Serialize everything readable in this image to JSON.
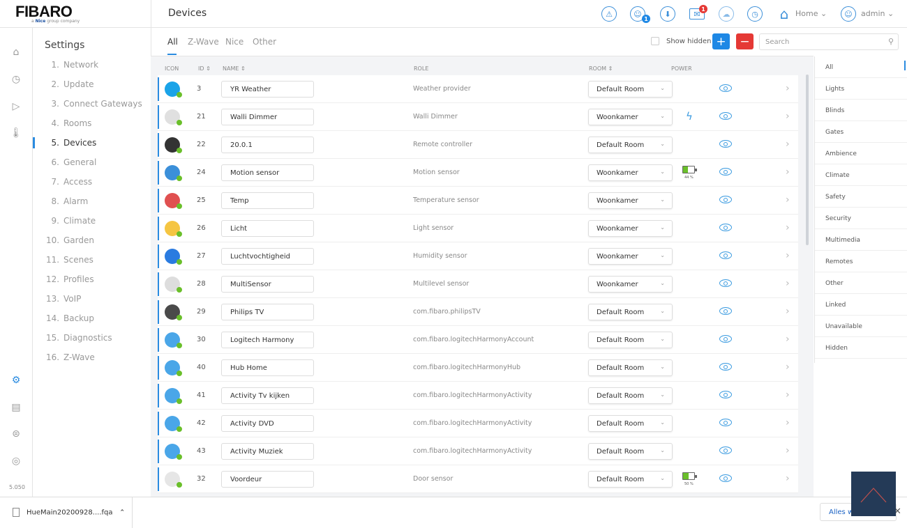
{
  "header": {
    "logo": "FIBARO",
    "logo_sub_brand": "Nice",
    "logo_sub_text": "group company",
    "title": "Devices",
    "icons": [
      "alarm-icon",
      "users-icon",
      "download-icon",
      "messages-icon",
      "cloud-icon",
      "clock-icon",
      "home-icon",
      "user-icon"
    ],
    "users_badge": "1",
    "messages_badge": "1",
    "home_label": "Home",
    "user_label": "admin"
  },
  "rail": {
    "version": "5.050"
  },
  "sidebar": {
    "title": "Settings",
    "items": [
      {
        "num": "1.",
        "label": "Network"
      },
      {
        "num": "2.",
        "label": "Update"
      },
      {
        "num": "3.",
        "label": "Connect Gateways"
      },
      {
        "num": "4.",
        "label": "Rooms"
      },
      {
        "num": "5.",
        "label": "Devices"
      },
      {
        "num": "6.",
        "label": "General"
      },
      {
        "num": "7.",
        "label": "Access"
      },
      {
        "num": "8.",
        "label": "Alarm"
      },
      {
        "num": "9.",
        "label": "Climate"
      },
      {
        "num": "10.",
        "label": "Garden"
      },
      {
        "num": "11.",
        "label": "Scenes"
      },
      {
        "num": "12.",
        "label": "Profiles"
      },
      {
        "num": "13.",
        "label": "VoIP"
      },
      {
        "num": "14.",
        "label": "Backup"
      },
      {
        "num": "15.",
        "label": "Diagnostics"
      },
      {
        "num": "16.",
        "label": "Z-Wave"
      }
    ],
    "active": 4
  },
  "tabs": [
    "All",
    "Z-Wave",
    "Nice",
    "Other"
  ],
  "toolbar": {
    "show_hidden": "Show hidden",
    "add": "+",
    "remove": "−",
    "search_placeholder": "Search"
  },
  "table": {
    "headers": {
      "icon": "ICON",
      "id": "ID ⇕",
      "name": "NAME ⇕",
      "role": "ROLE",
      "room": "ROOM ⇕",
      "power": "POWER"
    },
    "rows": [
      {
        "id": "3",
        "name": "YR Weather",
        "role": "Weather provider",
        "room": "Default Room",
        "icon_color": "#1aa3e8"
      },
      {
        "id": "21",
        "name": "Walli Dimmer",
        "role": "Walli Dimmer",
        "room": "Woonkamer",
        "power": "bolt",
        "icon_color": "#e0e0e0"
      },
      {
        "id": "22",
        "name": "20.0.1",
        "role": "Remote controller",
        "room": "Default Room",
        "icon_color": "#333333"
      },
      {
        "id": "24",
        "name": "Motion sensor",
        "role": "Motion sensor",
        "room": "Woonkamer",
        "battery": "44 %",
        "battery_level": 44,
        "icon_color": "#3b8fd9"
      },
      {
        "id": "25",
        "name": "Temp",
        "role": "Temperature sensor",
        "room": "Woonkamer",
        "icon_color": "#e05050"
      },
      {
        "id": "26",
        "name": "Licht",
        "role": "Light sensor",
        "room": "Woonkamer",
        "icon_color": "#f5c542"
      },
      {
        "id": "27",
        "name": "Luchtvochtigheid",
        "role": "Humidity sensor",
        "room": "Woonkamer",
        "icon_color": "#2a7be0"
      },
      {
        "id": "28",
        "name": "MultiSensor",
        "role": "Multilevel sensor",
        "room": "Woonkamer",
        "icon_color": "#dddddd"
      },
      {
        "id": "29",
        "name": "Philips TV",
        "role": "com.fibaro.philipsTV",
        "room": "Default Room",
        "icon_color": "#4a4a4a"
      },
      {
        "id": "30",
        "name": "Logitech Harmony",
        "role": "com.fibaro.logitechHarmonyAccount",
        "room": "Default Room",
        "icon_color": "#4aa6e8"
      },
      {
        "id": "40",
        "name": "Hub Home",
        "role": "com.fibaro.logitechHarmonyHub",
        "room": "Default Room",
        "icon_color": "#4aa6e8"
      },
      {
        "id": "41",
        "name": "Activity Tv kijken",
        "role": "com.fibaro.logitechHarmonyActivity",
        "room": "Default Room",
        "icon_color": "#4aa6e8"
      },
      {
        "id": "42",
        "name": "Activity DVD",
        "role": "com.fibaro.logitechHarmonyActivity",
        "room": "Default Room",
        "icon_color": "#4aa6e8"
      },
      {
        "id": "43",
        "name": "Activity Muziek",
        "role": "com.fibaro.logitechHarmonyActivity",
        "room": "Default Room",
        "icon_color": "#4aa6e8"
      },
      {
        "id": "32",
        "name": "Voordeur",
        "role": "Door sensor",
        "room": "Default Room",
        "battery": "50 %",
        "battery_level": 50,
        "icon_color": "#e6e6e6"
      }
    ]
  },
  "categories": [
    "All",
    "Lights",
    "Blinds",
    "Gates",
    "Ambience",
    "Climate",
    "Safety",
    "Security",
    "Multimedia",
    "Remotes",
    "Other",
    "Linked",
    "Unavailable",
    "Hidden"
  ],
  "download_bar": {
    "file": "HueMain20200928....fqa",
    "show_all": "Alles weergeven"
  },
  "colors": {
    "accent": "#2a8be0",
    "add": "#1e88e5",
    "remove": "#e53935",
    "ok": "#6abf2a"
  }
}
